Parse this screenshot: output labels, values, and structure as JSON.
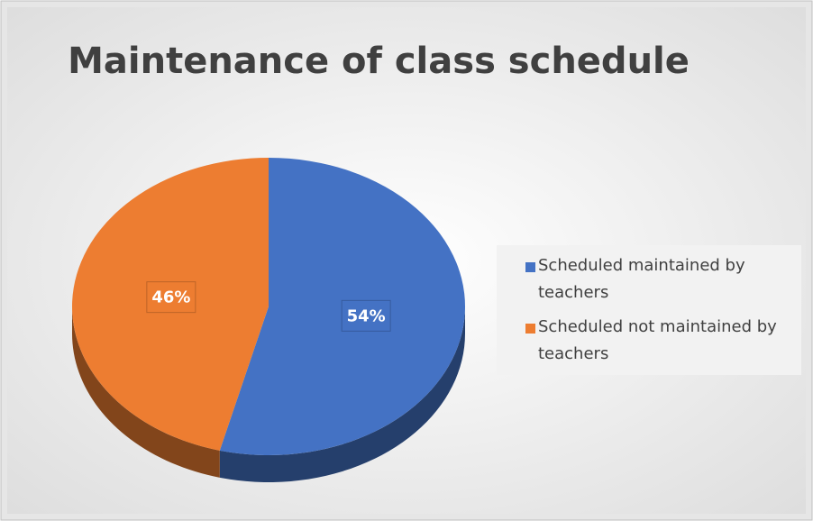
{
  "chart_data": {
    "type": "pie",
    "title": "Maintenance of class schedule",
    "categories": [
      "Scheduled maintained by teachers",
      "Scheduled not maintained by teachers"
    ],
    "values": [
      54,
      46
    ],
    "value_labels": [
      "54%",
      "46%"
    ],
    "colors": [
      "#4472c4",
      "#ed7d31"
    ],
    "legend": "right"
  }
}
